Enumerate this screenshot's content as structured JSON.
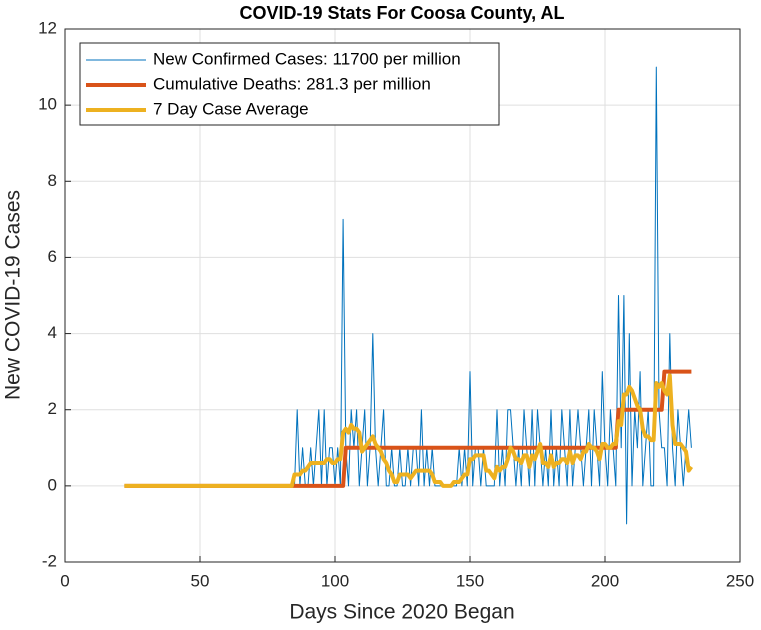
{
  "chart_data": {
    "type": "line",
    "title": "COVID-19 Stats For Coosa County, AL",
    "xlabel": "Days Since 2020 Began",
    "ylabel": "New COVID-19 Cases",
    "xlim": [
      0,
      250
    ],
    "xticks": [
      0,
      50,
      100,
      150,
      200,
      250
    ],
    "ylim": [
      -2,
      12
    ],
    "yticks": [
      -2,
      0,
      2,
      4,
      6,
      8,
      10,
      12
    ],
    "grid": true,
    "legend": "top-left",
    "x": [
      22,
      23,
      24,
      25,
      26,
      27,
      28,
      29,
      30,
      31,
      32,
      33,
      34,
      35,
      36,
      37,
      38,
      39,
      40,
      41,
      42,
      43,
      44,
      45,
      46,
      47,
      48,
      49,
      50,
      51,
      52,
      53,
      54,
      55,
      56,
      57,
      58,
      59,
      60,
      61,
      62,
      63,
      64,
      65,
      66,
      67,
      68,
      69,
      70,
      71,
      72,
      73,
      74,
      75,
      76,
      77,
      78,
      79,
      80,
      81,
      82,
      83,
      84,
      85,
      86,
      87,
      88,
      89,
      90,
      91,
      92,
      93,
      94,
      95,
      96,
      97,
      98,
      99,
      100,
      101,
      102,
      103,
      104,
      105,
      106,
      107,
      108,
      109,
      110,
      111,
      112,
      113,
      114,
      115,
      116,
      117,
      118,
      119,
      120,
      121,
      122,
      123,
      124,
      125,
      126,
      127,
      128,
      129,
      130,
      131,
      132,
      133,
      134,
      135,
      136,
      137,
      138,
      139,
      140,
      141,
      142,
      143,
      144,
      145,
      146,
      147,
      148,
      149,
      150,
      151,
      152,
      153,
      154,
      155,
      156,
      157,
      158,
      159,
      160,
      161,
      162,
      163,
      164,
      165,
      166,
      167,
      168,
      169,
      170,
      171,
      172,
      173,
      174,
      175,
      176,
      177,
      178,
      179,
      180,
      181,
      182,
      183,
      184,
      185,
      186,
      187,
      188,
      189,
      190,
      191,
      192,
      193,
      194,
      195,
      196,
      197,
      198,
      199,
      200,
      201,
      202,
      203,
      204,
      205,
      206,
      207,
      208,
      209,
      210,
      211,
      212,
      213,
      214,
      215,
      216,
      217,
      218,
      219,
      220,
      221,
      222,
      223,
      224,
      225,
      226,
      227,
      228,
      229,
      230,
      231,
      232
    ],
    "series": [
      {
        "name": "New Confirmed Cases: 11700 per million",
        "color": "#0072bd",
        "width": 1,
        "values": [
          0,
          0,
          0,
          0,
          0,
          0,
          0,
          0,
          0,
          0,
          0,
          0,
          0,
          0,
          0,
          0,
          0,
          0,
          0,
          0,
          0,
          0,
          0,
          0,
          0,
          0,
          0,
          0,
          0,
          0,
          0,
          0,
          0,
          0,
          0,
          0,
          0,
          0,
          0,
          0,
          0,
          0,
          0,
          0,
          0,
          0,
          0,
          0,
          0,
          0,
          0,
          0,
          0,
          0,
          0,
          0,
          0,
          0,
          0,
          0,
          0,
          0,
          0,
          0,
          2,
          0,
          1,
          0,
          0,
          1,
          0,
          1,
          2,
          0,
          2,
          0,
          1,
          1,
          0,
          1,
          0,
          7,
          1,
          0,
          2,
          1,
          2,
          0,
          1,
          2,
          0,
          1,
          4,
          1,
          0,
          1,
          2,
          0,
          0,
          1,
          0,
          0,
          1,
          0,
          0,
          1,
          0,
          1,
          1,
          0,
          2,
          0,
          1,
          0,
          1,
          0,
          0,
          0,
          0,
          0,
          0,
          0,
          0,
          0,
          1,
          0,
          1,
          0,
          3,
          0,
          1,
          1,
          0,
          1,
          0,
          0,
          0,
          0,
          2,
          0,
          1,
          0,
          2,
          2,
          1,
          0,
          1,
          0,
          2,
          1,
          0,
          2,
          0,
          2,
          1,
          0,
          1,
          0,
          2,
          0,
          1,
          0,
          2,
          1,
          0,
          2,
          0,
          1,
          2,
          1,
          0,
          1,
          2,
          0,
          2,
          1,
          0,
          3,
          1,
          0,
          2,
          1,
          0,
          5,
          1,
          5,
          -1,
          4,
          0,
          2,
          1,
          3,
          0,
          1,
          2,
          0,
          0,
          11,
          2,
          1,
          1,
          0,
          4,
          1,
          0,
          2,
          1,
          0,
          1,
          2,
          1
        ]
      },
      {
        "name": "Cumulative Deaths: 281.3 per million",
        "color": "#d95319",
        "width": 4,
        "values": [
          0,
          0,
          0,
          0,
          0,
          0,
          0,
          0,
          0,
          0,
          0,
          0,
          0,
          0,
          0,
          0,
          0,
          0,
          0,
          0,
          0,
          0,
          0,
          0,
          0,
          0,
          0,
          0,
          0,
          0,
          0,
          0,
          0,
          0,
          0,
          0,
          0,
          0,
          0,
          0,
          0,
          0,
          0,
          0,
          0,
          0,
          0,
          0,
          0,
          0,
          0,
          0,
          0,
          0,
          0,
          0,
          0,
          0,
          0,
          0,
          0,
          0,
          0,
          0,
          0,
          0,
          0,
          0,
          0,
          0,
          0,
          0,
          0,
          0,
          0,
          0,
          0,
          0,
          0,
          0,
          0,
          0,
          1,
          1,
          1,
          1,
          1,
          1,
          1,
          1,
          1,
          1,
          1,
          1,
          1,
          1,
          1,
          1,
          1,
          1,
          1,
          1,
          1,
          1,
          1,
          1,
          1,
          1,
          1,
          1,
          1,
          1,
          1,
          1,
          1,
          1,
          1,
          1,
          1,
          1,
          1,
          1,
          1,
          1,
          1,
          1,
          1,
          1,
          1,
          1,
          1,
          1,
          1,
          1,
          1,
          1,
          1,
          1,
          1,
          1,
          1,
          1,
          1,
          1,
          1,
          1,
          1,
          1,
          1,
          1,
          1,
          1,
          1,
          1,
          1,
          1,
          1,
          1,
          1,
          1,
          1,
          1,
          1,
          1,
          1,
          1,
          1,
          1,
          1,
          1,
          1,
          1,
          1,
          1,
          1,
          1,
          1,
          1,
          1,
          1,
          1,
          1,
          1,
          2,
          2,
          2,
          2,
          2,
          2,
          2,
          2,
          2,
          2,
          2,
          2,
          2,
          2,
          2,
          2,
          2,
          3,
          3,
          3,
          3,
          3,
          3,
          3,
          3,
          3,
          3,
          3
        ]
      },
      {
        "name": "7 Day Case Average",
        "color": "#edb120",
        "width": 4,
        "values": [
          0,
          0,
          0,
          0,
          0,
          0,
          0,
          0,
          0,
          0,
          0,
          0,
          0,
          0,
          0,
          0,
          0,
          0,
          0,
          0,
          0,
          0,
          0,
          0,
          0,
          0,
          0,
          0,
          0,
          0,
          0,
          0,
          0,
          0,
          0,
          0,
          0,
          0,
          0,
          0,
          0,
          0,
          0,
          0,
          0,
          0,
          0,
          0,
          0,
          0,
          0,
          0,
          0,
          0,
          0,
          0,
          0,
          0,
          0,
          0,
          0,
          0,
          0,
          0.3,
          0.3,
          0.3,
          0.4,
          0.4,
          0.5,
          0.6,
          0.6,
          0.6,
          0.6,
          0.6,
          0.6,
          0.7,
          0.7,
          0.6,
          0.6,
          0.7,
          0.7,
          1.4,
          1.5,
          1.4,
          1.6,
          1.5,
          1.5,
          1.4,
          0.9,
          1.0,
          1.1,
          1.2,
          1.3,
          1.1,
          1.0,
          0.9,
          0.7,
          0.6,
          0.4,
          0.3,
          0.1,
          0.1,
          0.3,
          0.3,
          0.3,
          0.3,
          0.2,
          0.3,
          0.4,
          0.4,
          0.4,
          0.4,
          0.4,
          0.4,
          0.3,
          0.1,
          0.1,
          0.1,
          0.0,
          0.0,
          0.0,
          0.0,
          0.1,
          0.1,
          0.1,
          0.2,
          0.3,
          0.3,
          0.7,
          0.7,
          0.8,
          0.8,
          0.8,
          0.8,
          0.4,
          0.4,
          0.3,
          0.2,
          0.5,
          0.4,
          0.5,
          0.5,
          0.7,
          1.0,
          0.9,
          0.7,
          0.7,
          0.6,
          0.8,
          0.8,
          0.5,
          0.8,
          0.7,
          0.9,
          1.1,
          0.6,
          0.6,
          0.5,
          0.8,
          0.5,
          0.6,
          0.6,
          0.7,
          0.7,
          0.6,
          0.9,
          0.6,
          0.8,
          0.8,
          0.7,
          0.9,
          0.9,
          1.1,
          1.0,
          1.0,
          0.9,
          0.7,
          1.1,
          1.1,
          1.0,
          1.0,
          1.1,
          1.1,
          1.7,
          1.6,
          2.4,
          2.4,
          2.6,
          2.5,
          2.3,
          2.1,
          2.0,
          1.5,
          1.3,
          1.3,
          1.2,
          1.2,
          2.7,
          2.6,
          2.7,
          2.5,
          2.4,
          2.9,
          1.6,
          1.1,
          1.1,
          1.1,
          1.0,
          0.9,
          0.4,
          0.5
        ]
      }
    ]
  }
}
